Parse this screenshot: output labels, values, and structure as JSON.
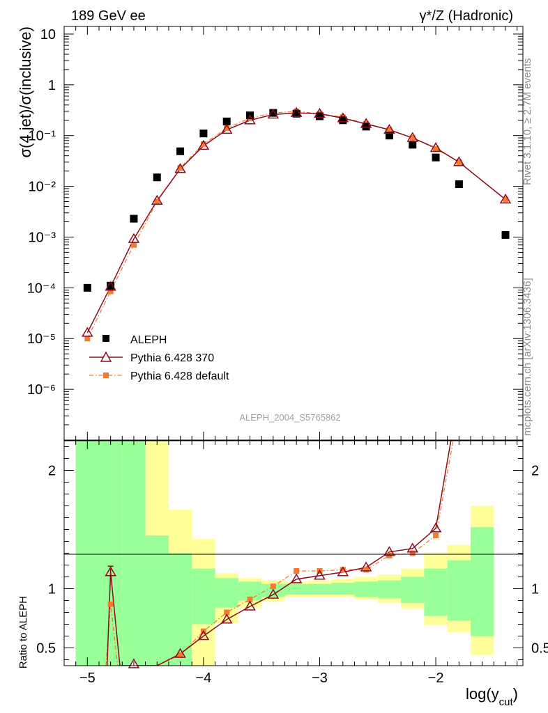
{
  "header": {
    "left": "189 GeV ee",
    "right": "γ*/Z (Hadronic)"
  },
  "side": {
    "rivet": "Rivet 3.1.10, ≥ 2.7M events",
    "mcplots": "mcplots.cern.ch [arXiv:1306.3436]"
  },
  "analysis_id": "ALEPH_2004_S5765862",
  "colors": {
    "data": "#000000",
    "mc1": "#8b0a1e",
    "mc2": "#f47a30",
    "band_inner": "#99ff99",
    "band_outer": "#ffff99"
  },
  "chart_data": [
    {
      "type": "scatter",
      "xlabel": "log(y_cut)",
      "ylabel": "σ(4 jet)/σ(inclusive)",
      "yscale": "log",
      "xlim": [
        -5.2,
        -1.25
      ],
      "ylim_exp": [
        -7,
        1.15
      ],
      "x_ticks": [
        -5,
        -4,
        -3,
        -2
      ],
      "y_ticks": [
        "10",
        "1",
        "10⁻¹",
        "10⁻²",
        "10⁻³",
        "10⁻⁴",
        "10⁻⁵",
        "10⁻⁶"
      ],
      "legend": [
        "ALEPH",
        "Pythia 6.428 370",
        "Pythia 6.428 default"
      ],
      "legend_position": "bottom-left",
      "series": [
        {
          "name": "ALEPH",
          "style": "square-markers",
          "x": [
            -5.0,
            -4.8,
            -4.6,
            -4.4,
            -4.2,
            -4.0,
            -3.8,
            -3.6,
            -3.4,
            -3.2,
            -3.0,
            -2.8,
            -2.6,
            -2.4,
            -2.2,
            -2.0,
            -1.8,
            -1.4
          ],
          "y": [
            0.0001,
            0.00011,
            0.0023,
            0.015,
            0.049,
            0.11,
            0.19,
            0.25,
            0.28,
            0.27,
            0.24,
            0.2,
            0.15,
            0.1,
            0.066,
            0.037,
            0.011,
            0.0011
          ]
        },
        {
          "name": "Pythia 6.428 370",
          "style": "solid-line-open-triangles",
          "x": [
            -5.0,
            -4.8,
            -4.6,
            -4.4,
            -4.2,
            -4.0,
            -3.8,
            -3.6,
            -3.4,
            -3.2,
            -3.0,
            -2.8,
            -2.6,
            -2.4,
            -2.2,
            -2.0,
            -1.8,
            -1.4
          ],
          "y": [
            1.3e-05,
            0.000105,
            0.00092,
            0.0052,
            0.022,
            0.063,
            0.13,
            0.2,
            0.26,
            0.28,
            0.27,
            0.22,
            0.17,
            0.13,
            0.09,
            0.057,
            0.03,
            0.0055
          ]
        },
        {
          "name": "Pythia 6.428 default",
          "style": "dashdot-line-filled-squares",
          "x": [
            -5.0,
            -4.8,
            -4.6,
            -4.4,
            -4.2,
            -4.0,
            -3.8,
            -3.6,
            -3.4,
            -3.2,
            -3.0,
            -2.8,
            -2.6,
            -2.4,
            -2.2,
            -2.0,
            -1.8,
            -1.4
          ],
          "y": [
            1e-05,
            8.5e-05,
            0.0007,
            0.005,
            0.023,
            0.068,
            0.14,
            0.22,
            0.28,
            0.3,
            0.27,
            0.23,
            0.17,
            0.13,
            0.09,
            0.055,
            0.03,
            0.0055
          ]
        }
      ]
    },
    {
      "type": "line",
      "xlabel": "log(y_cut)",
      "ylabel": "Ratio to ALEPH",
      "xlim": [
        -5.2,
        -1.25
      ],
      "ylim": [
        0.35,
        2.25
      ],
      "x_ticks": [
        -5,
        -4,
        -3,
        -2
      ],
      "y_ticks": [
        0.5,
        1,
        2
      ],
      "uncertainty_band": {
        "x_edges": [
          -5.1,
          -4.9,
          -4.7,
          -4.5,
          -4.3,
          -4.1,
          -3.9,
          -3.7,
          -3.5,
          -3.3,
          -3.1,
          -2.9,
          -2.7,
          -2.5,
          -2.3,
          -2.1,
          -1.9,
          -1.7,
          -1.5,
          -1.3
        ],
        "inner_lo": [
          0.35,
          0.35,
          0.35,
          0.35,
          0.35,
          0.7,
          0.84,
          0.9,
          0.93,
          0.95,
          0.95,
          0.95,
          0.93,
          0.92,
          0.88,
          0.77,
          0.73,
          0.6,
          null,
          0.35
        ],
        "inner_hi": [
          2.3,
          2.3,
          2.3,
          1.45,
          1.3,
          1.17,
          1.09,
          1.06,
          1.04,
          1.04,
          1.04,
          1.05,
          1.06,
          1.07,
          1.1,
          1.17,
          1.24,
          1.52,
          null,
          2.3
        ],
        "outer_lo": [
          0.35,
          0.35,
          0.35,
          0.35,
          0.35,
          0.35,
          0.71,
          0.84,
          0.89,
          0.93,
          0.93,
          0.93,
          0.91,
          0.88,
          0.83,
          0.69,
          0.63,
          0.44,
          null,
          0.35
        ],
        "outer_hi": [
          2.3,
          2.3,
          2.3,
          2.3,
          1.67,
          1.42,
          1.13,
          1.09,
          1.07,
          1.06,
          1.07,
          1.08,
          1.1,
          1.12,
          1.17,
          1.3,
          1.37,
          1.7,
          null,
          2.3
        ]
      },
      "series": [
        {
          "name": "Pythia 6.428 370",
          "x": [
            -4.83,
            -4.8,
            -4.72,
            -4.6,
            -4.4,
            -4.2,
            -4.0,
            -3.8,
            -3.6,
            -3.4,
            -3.2,
            -3.0,
            -2.8,
            -2.6,
            -2.4,
            -2.2,
            -2.0,
            -1.87
          ],
          "y": [
            0.35,
            1.14,
            0.35,
            0.35,
            0.35,
            0.45,
            0.6,
            0.74,
            0.85,
            0.95,
            1.08,
            1.11,
            1.14,
            1.18,
            1.31,
            1.34,
            1.51,
            2.25
          ],
          "error_at": {
            "x": -4.8,
            "lo": 1.09,
            "hi": 1.19
          }
        },
        {
          "name": "Pythia 6.428 default",
          "x": [
            -4.84,
            -4.8,
            -4.74,
            -4.6,
            -4.4,
            -4.2,
            -4.0,
            -3.8,
            -3.6,
            -3.4,
            -3.2,
            -3.0,
            -2.8,
            -2.6,
            -2.4,
            -2.2,
            -2.0,
            -1.85
          ],
          "y": [
            0.35,
            0.87,
            0.35,
            0.35,
            0.35,
            0.44,
            0.64,
            0.8,
            0.91,
            1.02,
            1.15,
            1.15,
            1.16,
            1.16,
            1.28,
            1.3,
            1.45,
            2.25
          ]
        }
      ]
    }
  ]
}
